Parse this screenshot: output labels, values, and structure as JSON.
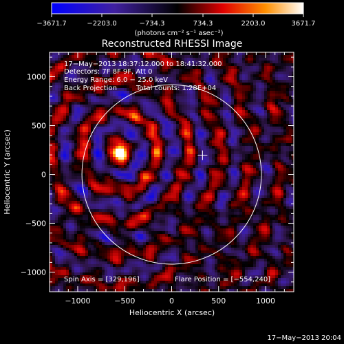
{
  "colorbar": {
    "tick_labels": [
      "−3671.7",
      "−2203.0",
      "−734.3",
      "734.3",
      "2203.0",
      "3671.7"
    ],
    "unit_label": "(photons cm⁻² s⁻¹ asec⁻²)",
    "range": [
      -3671.7,
      3671.7
    ]
  },
  "chart_data": {
    "type": "heatmap",
    "title": "Reconstructed RHESSI Image",
    "xlabel": "Heliocentric X (arcsec)",
    "ylabel": "Heliocentric Y (arcsec)",
    "xlim": [
      -1300,
      1300
    ],
    "ylim": [
      -1200,
      1250
    ],
    "xticks": [
      -1000,
      -500,
      0,
      500,
      1000
    ],
    "yticks": [
      -1000,
      -500,
      0,
      500,
      1000
    ],
    "xtick_labels": [
      "−1000",
      "−500",
      "0",
      "500",
      "1000"
    ],
    "ytick_labels": [
      "−1000",
      "−500",
      "0",
      "500",
      "1000"
    ],
    "solar_limb_radius_arcsec": 955,
    "disk_center_marker": [
      329,
      196
    ],
    "flare_source": {
      "x": -554,
      "y": 240,
      "peak": 3671.7
    },
    "annotations": {
      "time_range": "17−May−2013 18:37:12.000 to 18:41:32.000",
      "detectors": "Detectors: 7F 8F 9F, Att 0",
      "energy_range": "Energy Range: 6.0 − 25.0 keV",
      "method": "Back Projection",
      "total_counts": "Total counts: 1.28E+04",
      "spin_axis": "Spin Axis = [329,196]",
      "flare_position": "Flare Position = [−554,240]"
    }
  },
  "footer": {
    "timestamp": "17−May−2013 20:04"
  }
}
